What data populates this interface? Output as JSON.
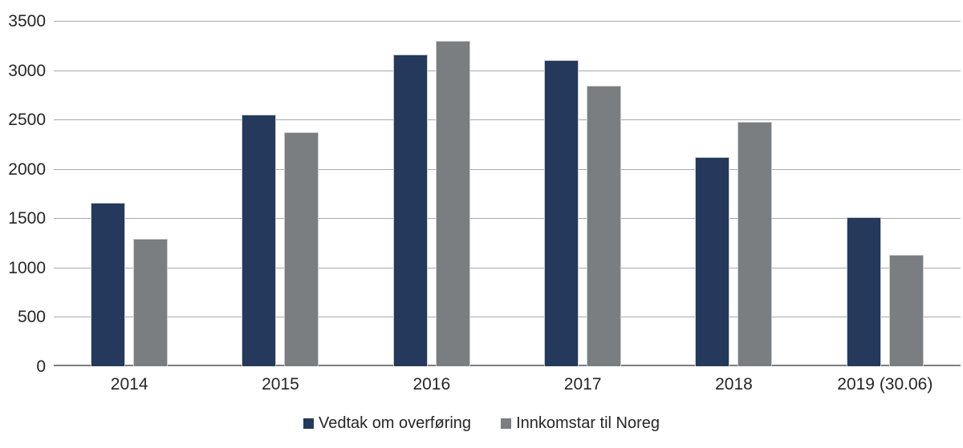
{
  "chart_data": {
    "type": "bar",
    "title": "",
    "xlabel": "",
    "ylabel": "",
    "categories": [
      "2014",
      "2015",
      "2016",
      "2017",
      "2018",
      "2019 (30.06)"
    ],
    "series": [
      {
        "name": "Vedtak om overføring",
        "color": "#24395B",
        "values": [
          1660,
          2550,
          3160,
          3100,
          2120,
          1510
        ]
      },
      {
        "name": "Innkomstar til Noreg",
        "color": "#7A7E81",
        "values": [
          1290,
          2370,
          3300,
          2840,
          2480,
          1130
        ]
      }
    ],
    "ylim": [
      0,
      3500
    ],
    "ytick_step": 500,
    "yticks": [
      "0",
      "500",
      "1000",
      "1500",
      "2000",
      "2500",
      "3000",
      "3500"
    ],
    "grid": true,
    "legend_position": "bottom",
    "colors": {
      "gridline": "#A9A9A9",
      "axis_line": "#7D7D7D",
      "text": "#262626",
      "background": "#FFFFFF"
    }
  }
}
